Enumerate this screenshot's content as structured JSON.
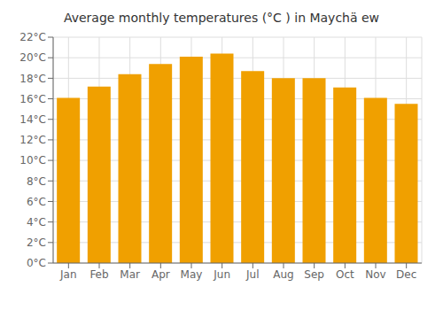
{
  "chart_data": {
    "type": "bar",
    "title": "Average monthly temperatures (°C ) in Maychä ew",
    "categories": [
      "Jan",
      "Feb",
      "Mar",
      "Apr",
      "May",
      "Jun",
      "Jul",
      "Aug",
      "Sep",
      "Oct",
      "Nov",
      "Dec"
    ],
    "values": [
      16.1,
      17.2,
      18.4,
      19.4,
      20.1,
      20.4,
      18.7,
      18.0,
      18.0,
      17.1,
      16.1,
      15.5
    ],
    "color": "#F0A000",
    "ylim": [
      0,
      22
    ],
    "yticks": [
      {
        "value": 0,
        "label": "0°C"
      },
      {
        "value": 2,
        "label": "2°C"
      },
      {
        "value": 4,
        "label": "4°C"
      },
      {
        "value": 6,
        "label": "6°C"
      },
      {
        "value": 8,
        "label": "8°C"
      },
      {
        "value": 10,
        "label": "10°C"
      },
      {
        "value": 12,
        "label": "12°C"
      },
      {
        "value": 14,
        "label": "14°C"
      },
      {
        "value": 16,
        "label": "16°C"
      },
      {
        "value": 18,
        "label": "18°C"
      },
      {
        "value": 20,
        "label": "20°C"
      },
      {
        "value": 22,
        "label": "22°C"
      }
    ],
    "grid": true
  }
}
